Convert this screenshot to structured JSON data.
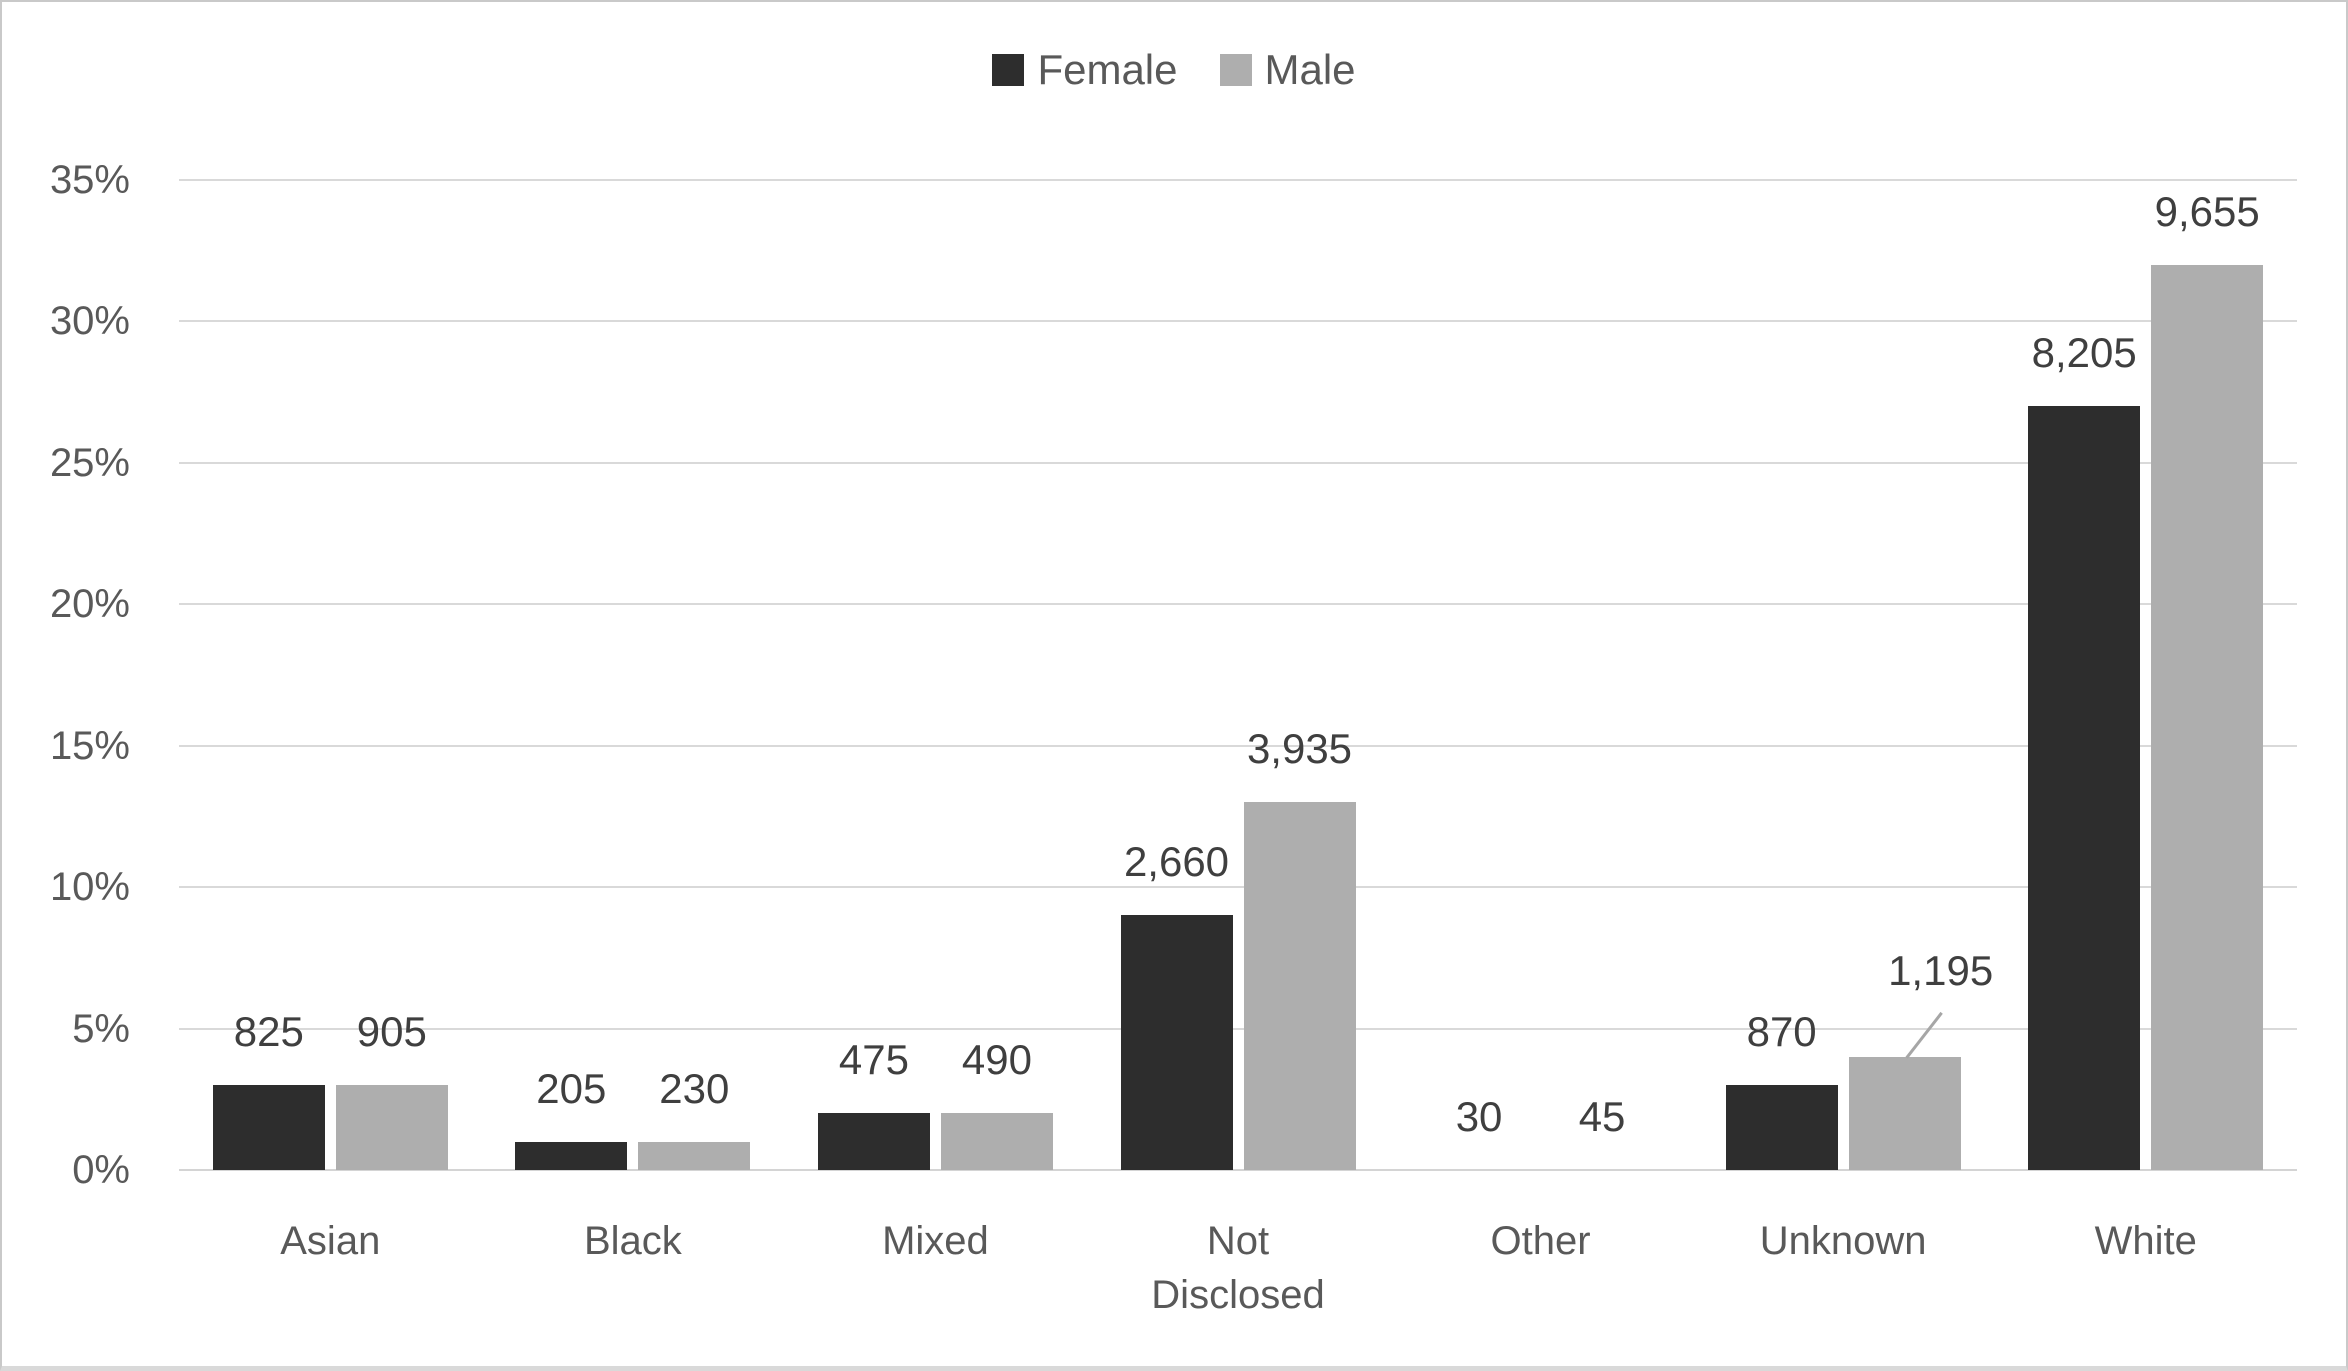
{
  "chart": {
    "background": "#ffffff",
    "frame_color": "#c9c9c9"
  },
  "legend": {
    "position": "top-center",
    "items": [
      {
        "label": "Female",
        "color": "#2d2d2d"
      },
      {
        "label": "Male",
        "color": "#aeaeae"
      }
    ]
  },
  "y_axis": {
    "min": 0,
    "max": 35,
    "step": 5,
    "unit": "percent",
    "tick_labels": [
      "0%",
      "5%",
      "10%",
      "15%",
      "20%",
      "25%",
      "30%",
      "35%"
    ]
  },
  "chart_data": {
    "type": "bar",
    "title": "",
    "xlabel": "",
    "ylabel": "",
    "ylim": [
      0,
      35
    ],
    "grid": "horizontal-only",
    "legend_position": "top-center",
    "data_labels": "above-bars",
    "categories": [
      "Asian",
      "Black",
      "Mixed",
      "Not\nDisclosed",
      "Other",
      "Unknown",
      "White"
    ],
    "series": [
      {
        "name": "Female",
        "color": "#2d2d2d",
        "values": [
          825,
          205,
          475,
          2660,
          30,
          870,
          8205
        ],
        "value_labels": [
          "825",
          "205",
          "475",
          "2,660",
          "30",
          "870",
          "8,205"
        ],
        "bar_heights_pct": [
          3,
          1,
          2,
          9,
          0,
          3,
          27
        ]
      },
      {
        "name": "Male",
        "color": "#aeaeae",
        "values": [
          905,
          230,
          490,
          3935,
          45,
          1195,
          9655
        ],
        "value_labels": [
          "905",
          "230",
          "490",
          "3,935",
          "45",
          "1,195",
          "9,655"
        ],
        "bar_heights_pct": [
          3,
          1,
          2,
          13,
          0,
          4,
          32
        ]
      }
    ],
    "label_callouts": [
      {
        "series": "Male",
        "category": "Unknown",
        "value_label": "1,195",
        "leader_line": true
      }
    ]
  },
  "colors": {
    "female_bar": "#2d2d2d",
    "male_bar": "#aeaeae",
    "gridline": "#d9d9d9",
    "axis_line": "#d4d4d4",
    "tick_text": "#595959",
    "category_text": "#595959",
    "data_label_text": "#3f3f3f",
    "legend_text": "#595959",
    "leader_line": "#a6a6a6"
  }
}
